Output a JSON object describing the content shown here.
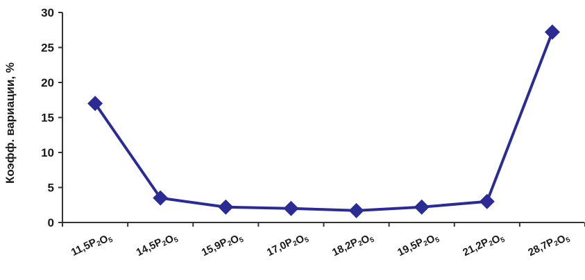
{
  "chart_data": {
    "type": "line",
    "ylabel": "Коэфф. вариации, %",
    "xlabel": "",
    "ylim": [
      0,
      30
    ],
    "yticks": [
      0,
      5,
      10,
      15,
      20,
      25,
      30
    ],
    "categories": [
      {
        "value": "11,5",
        "formula": "P2O5"
      },
      {
        "value": "14,5",
        "formula": "P2O5"
      },
      {
        "value": "15,9",
        "formula": "P2O5"
      },
      {
        "value": "17,0",
        "formula": "P2O5"
      },
      {
        "value": "18,2",
        "formula": "P2O5"
      },
      {
        "value": "19,5",
        "formula": "P2O5"
      },
      {
        "value": "21,2",
        "formula": "P2O5"
      },
      {
        "value": "28,7",
        "formula": "P2O5"
      }
    ],
    "series": [
      {
        "values": [
          17.0,
          3.5,
          2.2,
          2.0,
          1.7,
          2.2,
          3.0,
          27.2
        ],
        "color": "#2b2b96",
        "marker": "diamond"
      }
    ],
    "grid": false,
    "legend": "none"
  }
}
